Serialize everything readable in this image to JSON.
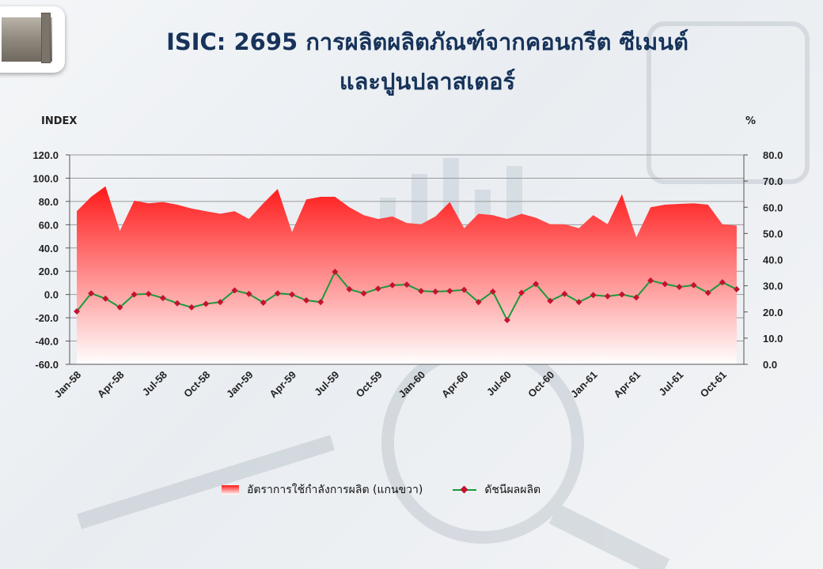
{
  "header": {
    "title_line1": "ISIC: 2695 การผลิตผลิตภัณฑ์จากคอนกรีต ซีเมนต์",
    "title_line2": "และปูนปลาสเตอร์",
    "left_unit": "INDEX",
    "right_unit": "%"
  },
  "legend": {
    "area_label": "อัตราการใช้กำลังการผลิต (แกนขวา)",
    "line_label": "ดัชนีผลผลิต"
  },
  "colors": {
    "area_top": "#ff1a1a",
    "area_bottom": "#ffffff",
    "line": "#1a9a3a",
    "marker": "#c4122f",
    "title": "#17335a"
  },
  "chart_data": {
    "type": "area",
    "x": [
      "Jan-58",
      "Feb-58",
      "Mar-58",
      "Apr-58",
      "May-58",
      "Jun-58",
      "Jul-58",
      "Aug-58",
      "Sep-58",
      "Oct-58",
      "Nov-58",
      "Dec-58",
      "Jan-59",
      "Feb-59",
      "Mar-59",
      "Apr-59",
      "May-59",
      "Jun-59",
      "Jul-59",
      "Aug-59",
      "Sep-59",
      "Oct-59",
      "Nov-59",
      "Dec-59",
      "Jan-60",
      "Feb-60",
      "Mar-60",
      "Apr-60",
      "May-60",
      "Jun-60",
      "Jul-60",
      "Aug-60",
      "Sep-60",
      "Oct-60",
      "Nov-60",
      "Dec-60",
      "Jan-61",
      "Feb-61",
      "Mar-61",
      "Apr-61",
      "May-61",
      "Jun-61",
      "Jul-61",
      "Aug-61",
      "Sep-61",
      "Oct-61",
      "Nov-61"
    ],
    "x_tick_labels": [
      "Jan-58",
      "Apr-58",
      "Jul-58",
      "Oct-58",
      "Jan-59",
      "Apr-59",
      "Jul-59",
      "Oct-59",
      "Jan-60",
      "Apr-60",
      "Jul-60",
      "Oct-60",
      "Jan-61",
      "Apr-61",
      "Jul-61",
      "Oct-61"
    ],
    "series": [
      {
        "name": "อัตราการใช้กำลังการผลิต (แกนขวา)",
        "axis": "right",
        "type": "area",
        "values": [
          58.5,
          64,
          68,
          51,
          62.5,
          61.5,
          62,
          61,
          59.5,
          58.5,
          57.5,
          58.5,
          55.5,
          61.5,
          67,
          50.5,
          63,
          64,
          64,
          60,
          57,
          55.5,
          56.5,
          54,
          53.5,
          56.5,
          62,
          52,
          57.5,
          57,
          55.5,
          57.5,
          56,
          53.5,
          53.5,
          52,
          57,
          53.5,
          65,
          48.5,
          60,
          61,
          61.3,
          61.5,
          61,
          53.5,
          53
        ]
      },
      {
        "name": "ดัชนีผลผลิต",
        "axis": "left",
        "type": "line",
        "values": [
          -14.5,
          1,
          -3.5,
          -11,
          0,
          0.5,
          -3,
          -7.5,
          -11,
          -8,
          -6.5,
          3.5,
          0.5,
          -7,
          1,
          0,
          -5,
          -6.5,
          19.5,
          4.5,
          1,
          5,
          8,
          8.5,
          3,
          2.5,
          3,
          4,
          -6.5,
          2.5,
          -22,
          1.5,
          9,
          -5.5,
          0.5,
          -6.5,
          -0.5,
          -1.5,
          0,
          -2.5,
          12,
          9,
          6.5,
          8,
          1.5,
          10.5,
          4.5
        ]
      }
    ],
    "y_left": {
      "ticks": [
        "120.0",
        "100.0",
        "80.0",
        "60.0",
        "40.0",
        "20.0",
        "0.0",
        "-20.0",
        "-40.0",
        "-60.0"
      ],
      "min": -60,
      "max": 120
    },
    "y_right": {
      "ticks": [
        "80.0",
        "70.0",
        "60.0",
        "50.0",
        "40.0",
        "30.0",
        "20.0",
        "10.0",
        "0.0"
      ],
      "min": 0,
      "max": 80
    },
    "grid": true,
    "legend_position": "bottom"
  }
}
